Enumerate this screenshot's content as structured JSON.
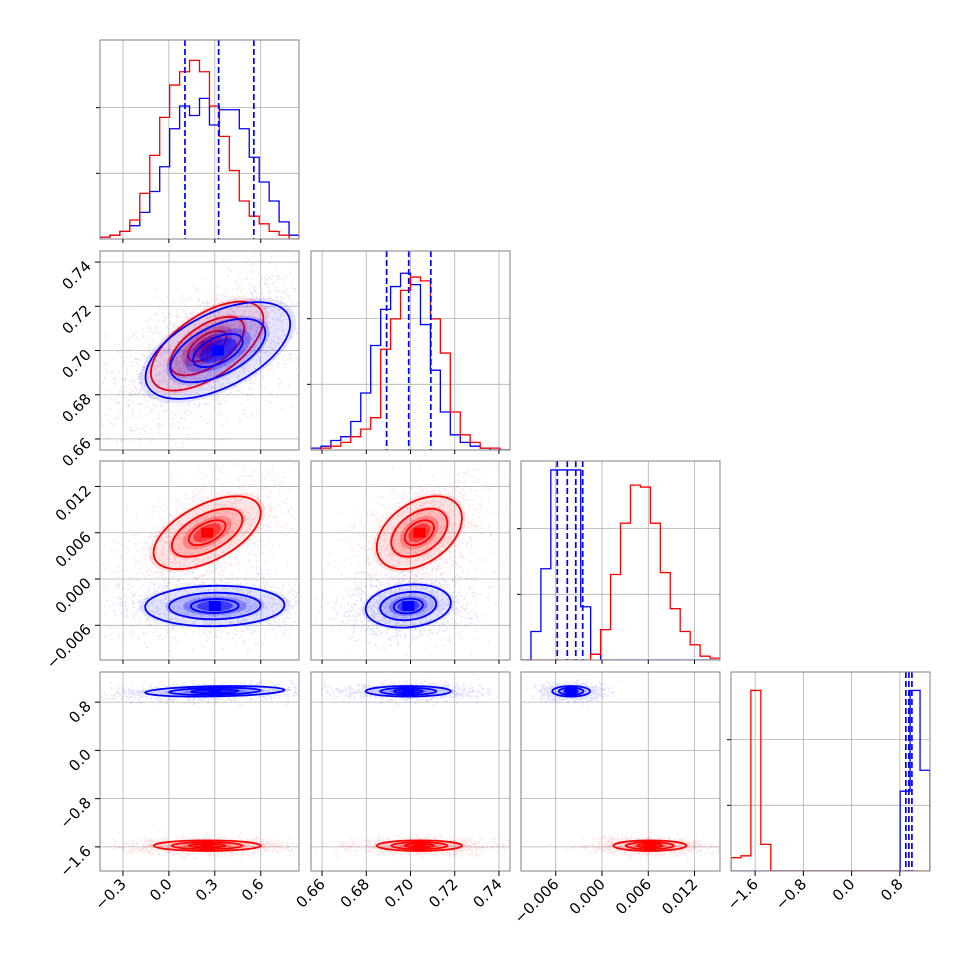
{
  "chart_data": {
    "type": "corner",
    "colors": {
      "series_a": "#0000ff",
      "series_b": "#ff0000",
      "grid": "#b0b0b0",
      "frame": "#808080"
    },
    "grid": true,
    "parameters": [
      {
        "range": [
          -0.45,
          0.85
        ],
        "ticks": [
          -0.3,
          0.0,
          0.3,
          0.6
        ],
        "tick_labels": [
          "−0.3",
          "0.0",
          "0.3",
          "0.6"
        ]
      },
      {
        "range": [
          0.655,
          0.745
        ],
        "ticks": [
          0.66,
          0.68,
          0.7,
          0.72,
          0.74
        ],
        "tick_labels": [
          "0.66",
          "0.68",
          "0.70",
          "0.72",
          "0.74"
        ]
      },
      {
        "range": [
          -0.0105,
          0.0153
        ],
        "ticks": [
          -0.006,
          0.0,
          0.006,
          0.012
        ],
        "tick_labels": [
          "−0.006",
          "0.000",
          "0.006",
          "0.012"
        ]
      },
      {
        "range": [
          -2.0,
          1.3
        ],
        "ticks": [
          -1.6,
          -0.8,
          0.0,
          0.8
        ],
        "tick_labels": [
          "−1.6",
          "−0.8",
          "0.0",
          "0.8"
        ]
      }
    ],
    "histograms": [
      {
        "param": 0,
        "edges": [
          -0.45,
          -0.385,
          -0.32,
          -0.255,
          -0.19,
          -0.125,
          -0.06,
          0.005,
          0.07,
          0.135,
          0.2,
          0.265,
          0.33,
          0.395,
          0.46,
          0.525,
          0.59,
          0.655,
          0.72,
          0.785,
          0.85
        ],
        "series": [
          {
            "name": "blue",
            "color": "#0000ff",
            "counts": [
              0.01,
              0.02,
              0.04,
              0.07,
              0.14,
              0.25,
              0.38,
              0.58,
              0.7,
              0.65,
              0.74,
              0.6,
              0.68,
              0.68,
              0.58,
              0.43,
              0.3,
              0.2,
              0.09,
              0.02
            ]
          },
          {
            "name": "red",
            "color": "#ff0000",
            "counts": [
              0.01,
              0.02,
              0.04,
              0.1,
              0.24,
              0.44,
              0.64,
              0.81,
              0.88,
              0.94,
              0.88,
              0.7,
              0.54,
              0.36,
              0.2,
              0.12,
              0.08,
              0.04,
              0.02,
              0.0
            ]
          }
        ],
        "quantiles": [
          0.105,
          0.325,
          0.555
        ]
      },
      {
        "param": 1,
        "edges": [
          0.655,
          0.6595,
          0.664,
          0.6685,
          0.673,
          0.6775,
          0.682,
          0.6865,
          0.691,
          0.6955,
          0.7,
          0.7045,
          0.709,
          0.7135,
          0.718,
          0.7225,
          0.727,
          0.7315,
          0.736,
          0.7405,
          0.745
        ],
        "series": [
          {
            "name": "blue",
            "color": "#0000ff",
            "counts": [
              0.01,
              0.02,
              0.05,
              0.07,
              0.15,
              0.3,
              0.55,
              0.74,
              0.86,
              0.93,
              0.87,
              0.66,
              0.42,
              0.2,
              0.08,
              0.04,
              0.02,
              0.01,
              0.0,
              0.0
            ]
          },
          {
            "name": "red",
            "color": "#ff0000",
            "counts": [
              0.0,
              0.01,
              0.02,
              0.04,
              0.07,
              0.11,
              0.17,
              0.53,
              0.69,
              0.84,
              0.91,
              0.89,
              0.69,
              0.51,
              0.2,
              0.08,
              0.04,
              0.01,
              0.01,
              0.0
            ]
          }
        ],
        "quantiles": [
          0.6892,
          0.6992,
          0.7092
        ]
      },
      {
        "param": 2,
        "edges": [
          -0.0105,
          -0.00921,
          -0.00792,
          -0.00663,
          -0.00534,
          -0.00405,
          -0.00276,
          -0.00147,
          -0.00018,
          0.00111,
          0.0024,
          0.00369,
          0.00498,
          0.00627,
          0.00756,
          0.00885,
          0.01014,
          0.01143,
          0.01272,
          0.01401,
          0.0153
        ],
        "series": [
          {
            "name": "blue",
            "color": "#0000ff",
            "counts": [
              0.0,
              0.15,
              0.48,
              1.0,
              1.0,
              1.0,
              0.28,
              0.03,
              0.0,
              0.0,
              0.0,
              0.0,
              0.0,
              0.0,
              0.0,
              0.0,
              0.0,
              0.0,
              0.0,
              0.0
            ]
          },
          {
            "name": "red",
            "color": "#ff0000",
            "counts": [
              0.0,
              0.0,
              0.0,
              0.0,
              0.0,
              0.0,
              0.0,
              0.03,
              0.16,
              0.45,
              0.72,
              0.92,
              0.91,
              0.72,
              0.46,
              0.27,
              0.15,
              0.08,
              0.02,
              0.01
            ]
          }
        ],
        "quantiles": [
          -0.0058,
          -0.0045,
          -0.0034,
          -0.0025
        ]
      },
      {
        "param": 3,
        "edges": [
          -2.0,
          -1.835,
          -1.67,
          -1.505,
          -1.34,
          -1.175,
          -1.01,
          -0.845,
          -0.68,
          -0.515,
          -0.35,
          -0.185,
          -0.02,
          0.145,
          0.31,
          0.475,
          0.64,
          0.805,
          0.97,
          1.135,
          1.3
        ],
        "series": [
          {
            "name": "blue",
            "color": "#0000ff",
            "counts": [
              0.0,
              0.0,
              0.0,
              0.0,
              0.0,
              0.0,
              0.0,
              0.0,
              0.0,
              0.0,
              0.0,
              0.0,
              0.0,
              0.0,
              0.0,
              0.0,
              0.0,
              0.42,
              0.95,
              0.53
            ]
          },
          {
            "name": "red",
            "color": "#ff0000",
            "counts": [
              0.07,
              0.08,
              0.95,
              0.14,
              0.0,
              0.0,
              0.0,
              0.0,
              0.0,
              0.0,
              0.0,
              0.0,
              0.0,
              0.0,
              0.0,
              0.0,
              0.0,
              0.0,
              0.0,
              0.0
            ]
          }
        ],
        "quantiles": [
          0.9,
          0.95,
          1.0
        ]
      }
    ],
    "pairs": [
      {
        "x": 0,
        "y": 1,
        "clusters": [
          {
            "color": "#ff0000",
            "center": [
              0.25,
              0.702
            ],
            "sigma": [
              0.21,
              0.0115
            ],
            "rho": 0.6
          },
          {
            "color": "#0000ff",
            "center": [
              0.32,
              0.7
            ],
            "sigma": [
              0.27,
              0.0125
            ],
            "rho": 0.55
          }
        ]
      },
      {
        "x": 0,
        "y": 2,
        "clusters": [
          {
            "color": "#ff0000",
            "center": [
              0.25,
              0.006
            ],
            "sigma": [
              0.2,
              0.0027
            ],
            "rho": 0.55
          },
          {
            "color": "#0000ff",
            "center": [
              0.3,
              -0.0035
            ],
            "sigma": [
              0.26,
              0.0015
            ],
            "rho": 0.05
          }
        ]
      },
      {
        "x": 1,
        "y": 2,
        "clusters": [
          {
            "color": "#ff0000",
            "center": [
              0.704,
              0.006
            ],
            "sigma": [
              0.011,
              0.0027
            ],
            "rho": 0.4
          },
          {
            "color": "#0000ff",
            "center": [
              0.699,
              -0.0035
            ],
            "sigma": [
              0.011,
              0.0016
            ],
            "rho": 0.15
          }
        ]
      },
      {
        "x": 0,
        "y": 3,
        "clusters": [
          {
            "color": "#ff0000",
            "center": [
              0.25,
              -1.58
            ],
            "sigma": [
              0.2,
              0.05
            ],
            "rho": 0.0
          },
          {
            "color": "#0000ff",
            "center": [
              0.3,
              0.98
            ],
            "sigma": [
              0.26,
              0.05
            ],
            "rho": 0.25
          }
        ]
      },
      {
        "x": 1,
        "y": 3,
        "clusters": [
          {
            "color": "#ff0000",
            "center": [
              0.704,
              -1.58
            ],
            "sigma": [
              0.011,
              0.05
            ],
            "rho": 0.0
          },
          {
            "color": "#0000ff",
            "center": [
              0.699,
              0.98
            ],
            "sigma": [
              0.011,
              0.05
            ],
            "rho": 0.0
          }
        ]
      },
      {
        "x": 2,
        "y": 3,
        "clusters": [
          {
            "color": "#ff0000",
            "center": [
              0.0062,
              -1.58
            ],
            "sigma": [
              0.0027,
              0.05
            ],
            "rho": 0.0
          },
          {
            "color": "#0000ff",
            "center": [
              -0.004,
              0.98
            ],
            "sigma": [
              0.0014,
              0.05
            ],
            "rho": 0.0
          }
        ]
      }
    ]
  }
}
